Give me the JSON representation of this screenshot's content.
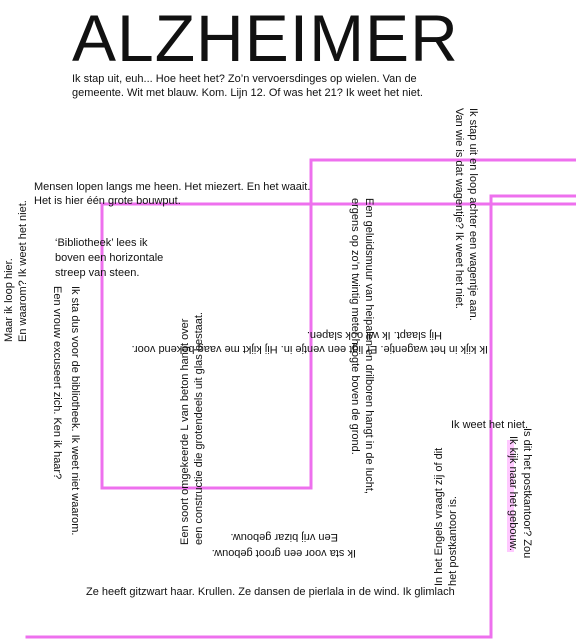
{
  "title": "ALZHEIMER",
  "accent_color": "#ee70ee",
  "texts": {
    "intro_1": "Ik stap uit, euh... Hoe heet het? Zo’n vervoersdinges op wielen. Van de",
    "intro_2": "gemeente. Wit met blauw. Kom. Lijn 12. Of was het 21? Ik weet het niet.",
    "people_1": "Mensen lopen langs me heen. Het miezert. En het waait.",
    "people_2": "Het is hier één grote bouwput.",
    "library_1": "‘Bibliotheek’ lees ik",
    "library_2": "boven een horizontale",
    "library_3": "streep van steen.",
    "left_1": "Maar ik loop hier.",
    "left_2": "En waarom? Ik weet het niet.",
    "library_front_1": "Ik sta dus voor de bibliotheek. Ik weet niet waarom.",
    "library_front_2": "Een vrouw excuseert zich. Ken ik haar?",
    "concrete_1": "Een soort omgekeerde L van beton hangt over",
    "concrete_2": "een constructie die grotendeels uit glas bestaat.",
    "dog_1": "Ik kijk in het wagentje. Er ligt een ventje in. Hij kijkt me vaag bekend voor.",
    "dog_2": "Hij slaapt. Ik wil ook slapen.",
    "noise_1": "Een geluidsmuur van heipalen en drilboren hangt in de lucht,",
    "noise_2": "ergens op zo’n twintig meter hoogte boven de grond.",
    "stroller_1": "Ik stap uit en loop achter een wagentje aan.",
    "stroller_2": "Van wie is dat wagentje? Ik weet het niet.",
    "dont_know": "Ik weet het niet.",
    "postoffice_1": "Is dit het postkantoor? Zou",
    "postoffice_2": "Ik kijk naar het gebouw.",
    "english_1": "In het Engels vraagt zij of dit",
    "english_2": "het postkantoor is.",
    "big_building_1": "Ik sta voor een groot gebouw.",
    "big_building_2": "Een vrij bizar gebouw.",
    "hair": "Ze heeft gitzwart haar. Krullen. Ze dansen de pierlala in de wind. Ik glimlach"
  }
}
